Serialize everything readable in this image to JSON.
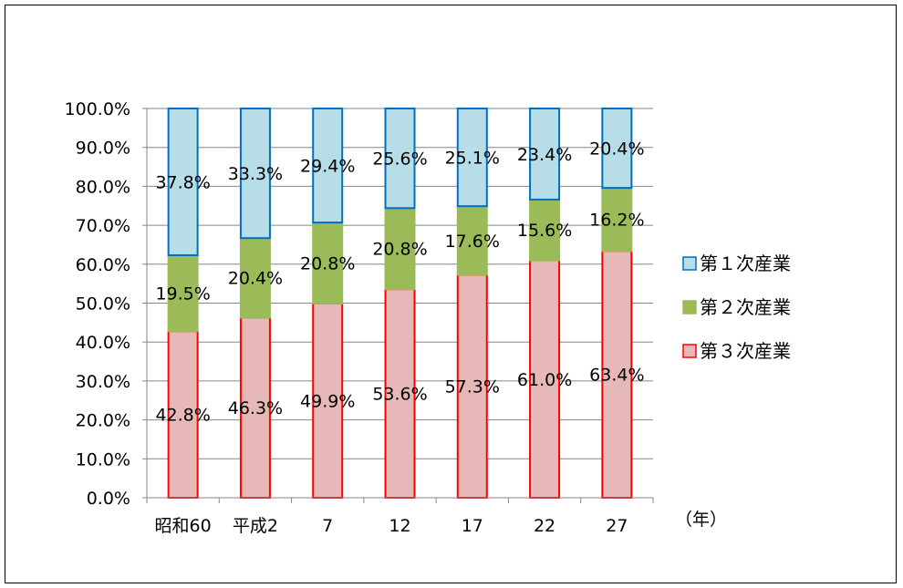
{
  "chart_data": {
    "type": "bar",
    "stacked": true,
    "percent_stacked": true,
    "categories": [
      "昭和60",
      "平成2",
      "7",
      "12",
      "17",
      "22",
      "27"
    ],
    "series": [
      {
        "name": "第３次産業",
        "values": [
          42.8,
          46.3,
          49.9,
          53.6,
          57.3,
          61.0,
          63.4
        ],
        "labels": [
          "42.8%",
          "46.3%",
          "49.9%",
          "53.6%",
          "57.3%",
          "61.0%",
          "63.4%"
        ],
        "fill": "#e6b8b8",
        "stroke": "#ff0000"
      },
      {
        "name": "第２次産業",
        "values": [
          19.5,
          20.4,
          20.8,
          20.8,
          17.6,
          15.6,
          16.2
        ],
        "labels": [
          "19.5%",
          "20.4%",
          "20.8%",
          "20.8%",
          "17.6%",
          "15.6%",
          "16.2%"
        ],
        "fill": "#9bbb59",
        "stroke": "#9bbb59"
      },
      {
        "name": "第１次産業",
        "values": [
          37.8,
          33.3,
          29.4,
          25.6,
          25.1,
          23.4,
          20.4
        ],
        "labels": [
          "37.8%",
          "33.3%",
          "29.4%",
          "25.6%",
          "25.1%",
          "23.4%",
          "20.4%"
        ],
        "fill": "#b7dde8",
        "stroke": "#0070c0"
      }
    ],
    "ylim": [
      0,
      100
    ],
    "yticks": [
      "0.0%",
      "10.0%",
      "20.0%",
      "30.0%",
      "40.0%",
      "50.0%",
      "60.0%",
      "70.0%",
      "80.0%",
      "90.0%",
      "100.0%"
    ],
    "x_unit": "（年）",
    "grid": true,
    "legend_position": "right",
    "legend_order": [
      "第１次産業",
      "第２次産業",
      "第３次産業"
    ]
  }
}
